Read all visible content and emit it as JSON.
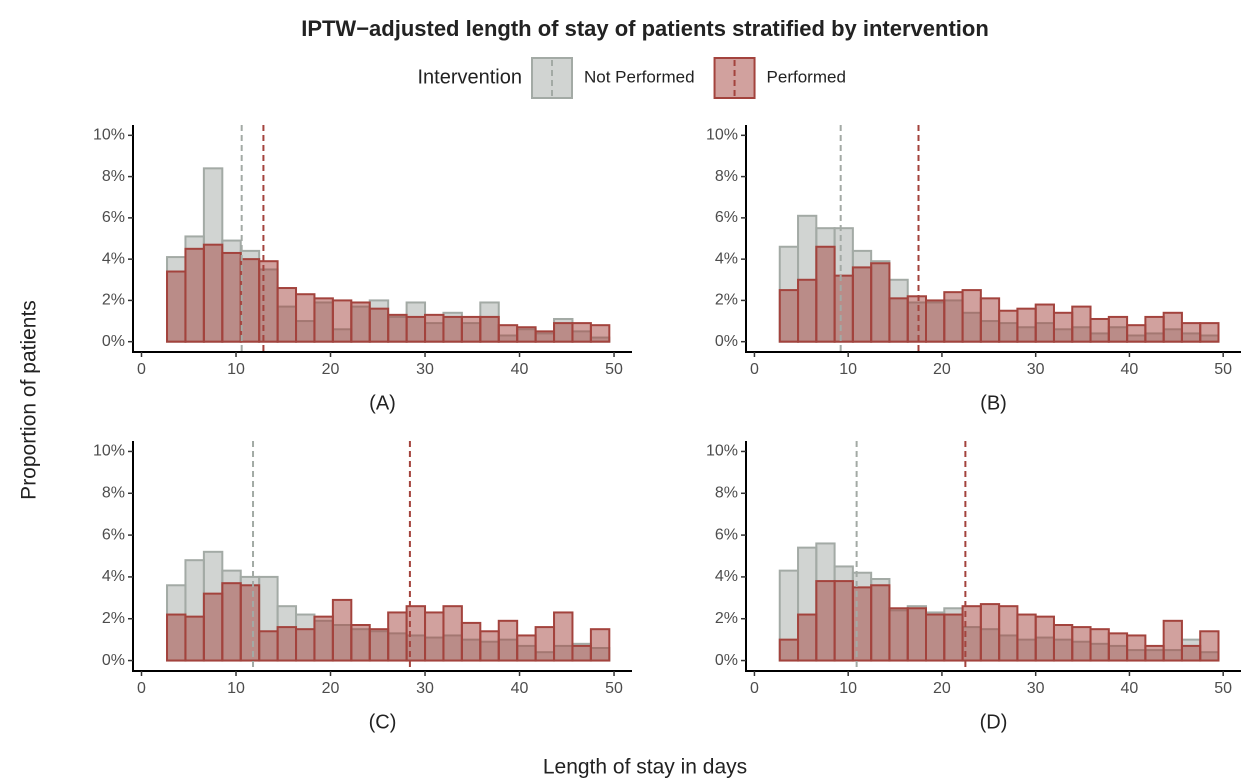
{
  "figure": {
    "title": "IPTW−adjusted length of stay of patients stratified by intervention",
    "legend_title": "Intervention",
    "ylabel": "Proportion of patients",
    "xlabel": "Length of stay in days"
  },
  "chart_data": [
    {
      "type": "histogram",
      "xlabel": "(A)",
      "bins": [
        2.7,
        4.65,
        6.6,
        8.55,
        10.5,
        12.45,
        14.4,
        16.35,
        18.3,
        20.25,
        22.2,
        24.15,
        26.1,
        28.05,
        30,
        31.95,
        33.9,
        35.85,
        37.8,
        39.75,
        41.7,
        43.65,
        45.6,
        47.55,
        49.5
      ],
      "series": [
        {
          "name": "Not Performed",
          "color": "#a3aaa5",
          "mean": 10.6,
          "values": [
            4.1,
            5.1,
            8.4,
            4.9,
            4.4,
            3.5,
            1.7,
            1.0,
            1.9,
            0.6,
            1.7,
            2.0,
            1.2,
            1.9,
            0.9,
            1.4,
            0.9,
            1.9,
            0.3,
            0.6,
            0.4,
            1.1,
            0.5,
            0.2
          ]
        },
        {
          "name": "Performed",
          "color": "#a3433d",
          "mean": 12.9,
          "values": [
            3.4,
            4.5,
            4.7,
            4.3,
            4.0,
            3.9,
            2.6,
            2.3,
            2.1,
            2.0,
            1.9,
            1.6,
            1.3,
            1.2,
            1.3,
            1.2,
            1.2,
            1.2,
            0.8,
            0.7,
            0.5,
            0.9,
            0.9,
            0.8
          ]
        }
      ],
      "xlim": [
        -0.9,
        51.9
      ],
      "xticks": [
        0,
        10,
        20,
        30,
        40,
        50
      ],
      "ylim": [
        -0.5,
        10.5
      ],
      "yticks": [
        {
          "value": 0,
          "label": "0%"
        },
        {
          "value": 2,
          "label": "2%"
        },
        {
          "value": 4,
          "label": "4%"
        },
        {
          "value": 6,
          "label": "6%"
        },
        {
          "value": 8,
          "label": "8%"
        },
        {
          "value": 10,
          "label": "10%"
        }
      ]
    },
    {
      "type": "histogram",
      "xlabel": "(B)",
      "bins": [
        2.7,
        4.65,
        6.6,
        8.55,
        10.5,
        12.45,
        14.4,
        16.35,
        18.3,
        20.25,
        22.2,
        24.15,
        26.1,
        28.05,
        30,
        31.95,
        33.9,
        35.85,
        37.8,
        39.75,
        41.7,
        43.65,
        45.6,
        47.55,
        49.5
      ],
      "series": [
        {
          "name": "Not Performed",
          "color": "#a3aaa5",
          "mean": 9.2,
          "values": [
            4.6,
            6.1,
            5.5,
            5.5,
            4.4,
            3.9,
            3.0,
            1.9,
            1.9,
            2.0,
            1.4,
            1.0,
            0.9,
            0.7,
            0.9,
            0.6,
            0.7,
            0.4,
            0.7,
            0.3,
            0.4,
            0.6,
            0.4,
            0.3
          ]
        },
        {
          "name": "Performed",
          "color": "#a3433d",
          "mean": 17.5,
          "values": [
            2.5,
            3.0,
            4.6,
            3.2,
            3.6,
            3.8,
            2.1,
            2.2,
            2.0,
            2.4,
            2.5,
            2.1,
            1.5,
            1.6,
            1.8,
            1.4,
            1.7,
            1.1,
            1.2,
            0.8,
            1.2,
            1.4,
            0.9,
            0.9
          ]
        }
      ],
      "xlim": [
        -0.9,
        51.9
      ],
      "xticks": [
        0,
        10,
        20,
        30,
        40,
        50
      ],
      "ylim": [
        -0.5,
        10.5
      ],
      "yticks": [
        {
          "value": 0,
          "label": "0%"
        },
        {
          "value": 2,
          "label": "2%"
        },
        {
          "value": 4,
          "label": "4%"
        },
        {
          "value": 6,
          "label": "6%"
        },
        {
          "value": 8,
          "label": "8%"
        },
        {
          "value": 10,
          "label": "10%"
        }
      ]
    },
    {
      "type": "histogram",
      "xlabel": "(C)",
      "bins": [
        2.7,
        4.65,
        6.6,
        8.55,
        10.5,
        12.45,
        14.4,
        16.35,
        18.3,
        20.25,
        22.2,
        24.15,
        26.1,
        28.05,
        30,
        31.95,
        33.9,
        35.85,
        37.8,
        39.75,
        41.7,
        43.65,
        45.6,
        47.55,
        49.5
      ],
      "series": [
        {
          "name": "Not Performed",
          "color": "#a3aaa5",
          "mean": 11.8,
          "values": [
            3.6,
            4.8,
            5.2,
            4.3,
            4.0,
            4.0,
            2.6,
            2.2,
            1.9,
            1.7,
            1.5,
            1.4,
            1.3,
            1.2,
            1.1,
            1.2,
            1.0,
            0.9,
            1.0,
            0.7,
            0.4,
            0.7,
            0.8,
            0.6
          ]
        },
        {
          "name": "Performed",
          "color": "#a3433d",
          "mean": 28.4,
          "values": [
            2.2,
            2.1,
            3.2,
            3.7,
            3.6,
            1.4,
            1.6,
            1.5,
            2.1,
            2.9,
            1.7,
            1.5,
            2.3,
            2.6,
            2.3,
            2.6,
            1.8,
            1.4,
            1.9,
            1.2,
            1.6,
            2.3,
            0.7,
            1.5
          ]
        }
      ],
      "xlim": [
        -0.9,
        51.9
      ],
      "xticks": [
        0,
        10,
        20,
        30,
        40,
        50
      ],
      "ylim": [
        -0.5,
        10.5
      ],
      "yticks": [
        {
          "value": 0,
          "label": "0%"
        },
        {
          "value": 2,
          "label": "2%"
        },
        {
          "value": 4,
          "label": "4%"
        },
        {
          "value": 6,
          "label": "6%"
        },
        {
          "value": 8,
          "label": "8%"
        },
        {
          "value": 10,
          "label": "10%"
        }
      ]
    },
    {
      "type": "histogram",
      "xlabel": "(D)",
      "bins": [
        2.7,
        4.65,
        6.6,
        8.55,
        10.5,
        12.45,
        14.4,
        16.35,
        18.3,
        20.25,
        22.2,
        24.15,
        26.1,
        28.05,
        30,
        31.95,
        33.9,
        35.85,
        37.8,
        39.75,
        41.7,
        43.65,
        45.6,
        47.55,
        49.5
      ],
      "series": [
        {
          "name": "Not Performed",
          "color": "#a3aaa5",
          "mean": 10.9,
          "values": [
            4.3,
            5.4,
            5.6,
            4.5,
            4.2,
            3.9,
            2.4,
            2.6,
            2.3,
            2.5,
            1.6,
            1.5,
            1.2,
            1.0,
            1.1,
            1.0,
            0.9,
            0.8,
            0.7,
            0.5,
            0.5,
            0.5,
            1.0,
            0.4
          ]
        },
        {
          "name": "Performed",
          "color": "#a3433d",
          "mean": 22.5,
          "values": [
            1.0,
            2.2,
            3.8,
            3.8,
            3.5,
            3.6,
            2.5,
            2.5,
            2.2,
            2.2,
            2.6,
            2.7,
            2.6,
            2.2,
            2.1,
            1.7,
            1.6,
            1.5,
            1.3,
            1.2,
            0.7,
            1.9,
            0.7,
            1.4
          ]
        }
      ],
      "xlim": [
        -0.9,
        51.9
      ],
      "xticks": [
        0,
        10,
        20,
        30,
        40,
        50
      ],
      "ylim": [
        -0.5,
        10.5
      ],
      "yticks": [
        {
          "value": 0,
          "label": "0%"
        },
        {
          "value": 2,
          "label": "2%"
        },
        {
          "value": 4,
          "label": "4%"
        },
        {
          "value": 6,
          "label": "6%"
        },
        {
          "value": 8,
          "label": "8%"
        },
        {
          "value": 10,
          "label": "10%"
        }
      ]
    }
  ]
}
